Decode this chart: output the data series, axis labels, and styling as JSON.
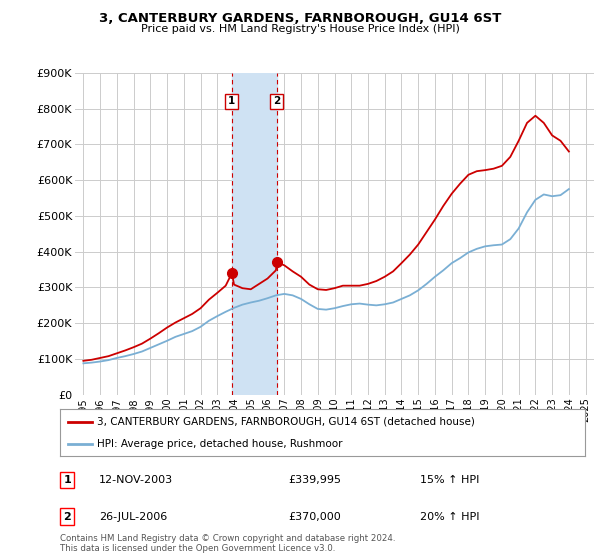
{
  "title": "3, CANTERBURY GARDENS, FARNBOROUGH, GU14 6ST",
  "subtitle": "Price paid vs. HM Land Registry's House Price Index (HPI)",
  "legend_line1": "3, CANTERBURY GARDENS, FARNBOROUGH, GU14 6ST (detached house)",
  "legend_line2": "HPI: Average price, detached house, Rushmoor",
  "footnote": "Contains HM Land Registry data © Crown copyright and database right 2024.\nThis data is licensed under the Open Government Licence v3.0.",
  "transaction1_label": "1",
  "transaction1_date": "12-NOV-2003",
  "transaction1_price": "£339,995",
  "transaction1_hpi": "15% ↑ HPI",
  "transaction1_year": 2003.87,
  "transaction1_value": 339995,
  "transaction2_label": "2",
  "transaction2_date": "26-JUL-2006",
  "transaction2_price": "£370,000",
  "transaction2_hpi": "20% ↑ HPI",
  "transaction2_year": 2006.56,
  "transaction2_value": 370000,
  "red_color": "#cc0000",
  "blue_color": "#7aafd4",
  "highlight_color": "#cfe2f3",
  "highlight_border": "#cc0000",
  "background_color": "#ffffff",
  "grid_color": "#cccccc",
  "ylim": [
    0,
    900000
  ],
  "xlim_start": 1994.5,
  "xlim_end": 2025.5,
  "yticks": [
    0,
    100000,
    200000,
    300000,
    400000,
    500000,
    600000,
    700000,
    800000,
    900000
  ],
  "ytick_labels": [
    "£0",
    "£100K",
    "£200K",
    "£300K",
    "£400K",
    "£500K",
    "£600K",
    "£700K",
    "£800K",
    "£900K"
  ],
  "xticks": [
    1995,
    1996,
    1997,
    1998,
    1999,
    2000,
    2001,
    2002,
    2003,
    2004,
    2005,
    2006,
    2007,
    2008,
    2009,
    2010,
    2011,
    2012,
    2013,
    2014,
    2015,
    2016,
    2017,
    2018,
    2019,
    2020,
    2021,
    2022,
    2023,
    2024,
    2025
  ],
  "hpi_years": [
    1995.0,
    1995.5,
    1996.0,
    1996.5,
    1997.0,
    1997.5,
    1998.0,
    1998.5,
    1999.0,
    1999.5,
    2000.0,
    2000.5,
    2001.0,
    2001.5,
    2002.0,
    2002.5,
    2003.0,
    2003.5,
    2004.0,
    2004.5,
    2005.0,
    2005.5,
    2006.0,
    2006.5,
    2007.0,
    2007.5,
    2008.0,
    2008.5,
    2009.0,
    2009.5,
    2010.0,
    2010.5,
    2011.0,
    2011.5,
    2012.0,
    2012.5,
    2013.0,
    2013.5,
    2014.0,
    2014.5,
    2015.0,
    2015.5,
    2016.0,
    2016.5,
    2017.0,
    2017.5,
    2018.0,
    2018.5,
    2019.0,
    2019.5,
    2020.0,
    2020.5,
    2021.0,
    2021.5,
    2022.0,
    2022.5,
    2023.0,
    2023.5,
    2024.0
  ],
  "hpi_values": [
    88000,
    90000,
    93000,
    97000,
    103000,
    108000,
    114000,
    121000,
    131000,
    141000,
    151000,
    162000,
    170000,
    178000,
    190000,
    207000,
    220000,
    232000,
    243000,
    252000,
    258000,
    263000,
    270000,
    278000,
    282000,
    278000,
    268000,
    253000,
    240000,
    238000,
    242000,
    248000,
    253000,
    255000,
    252000,
    250000,
    253000,
    258000,
    268000,
    278000,
    292000,
    310000,
    330000,
    348000,
    368000,
    382000,
    398000,
    408000,
    415000,
    418000,
    420000,
    435000,
    465000,
    510000,
    545000,
    560000,
    555000,
    558000,
    575000
  ],
  "red_years": [
    1995.0,
    1995.5,
    1996.0,
    1996.5,
    1997.0,
    1997.5,
    1998.0,
    1998.5,
    1999.0,
    1999.5,
    2000.0,
    2000.5,
    2001.0,
    2001.5,
    2002.0,
    2002.5,
    2003.0,
    2003.5,
    2003.87,
    2004.0,
    2004.5,
    2005.0,
    2005.5,
    2006.0,
    2006.5,
    2006.56,
    2007.0,
    2007.5,
    2008.0,
    2008.5,
    2009.0,
    2009.5,
    2010.0,
    2010.5,
    2011.0,
    2011.5,
    2012.0,
    2012.5,
    2013.0,
    2013.5,
    2014.0,
    2014.5,
    2015.0,
    2015.5,
    2016.0,
    2016.5,
    2017.0,
    2017.5,
    2018.0,
    2018.5,
    2019.0,
    2019.5,
    2020.0,
    2020.5,
    2021.0,
    2021.5,
    2022.0,
    2022.5,
    2023.0,
    2023.5,
    2024.0
  ],
  "red_values": [
    95000,
    98000,
    103000,
    108000,
    116000,
    124000,
    133000,
    143000,
    157000,
    172000,
    188000,
    202000,
    214000,
    226000,
    242000,
    266000,
    285000,
    305000,
    339995,
    308000,
    298000,
    295000,
    310000,
    325000,
    348000,
    370000,
    362000,
    345000,
    330000,
    308000,
    295000,
    293000,
    298000,
    305000,
    305000,
    305000,
    310000,
    318000,
    330000,
    345000,
    368000,
    392000,
    420000,
    455000,
    490000,
    528000,
    562000,
    590000,
    615000,
    625000,
    628000,
    632000,
    640000,
    665000,
    710000,
    760000,
    780000,
    760000,
    725000,
    710000,
    680000
  ]
}
